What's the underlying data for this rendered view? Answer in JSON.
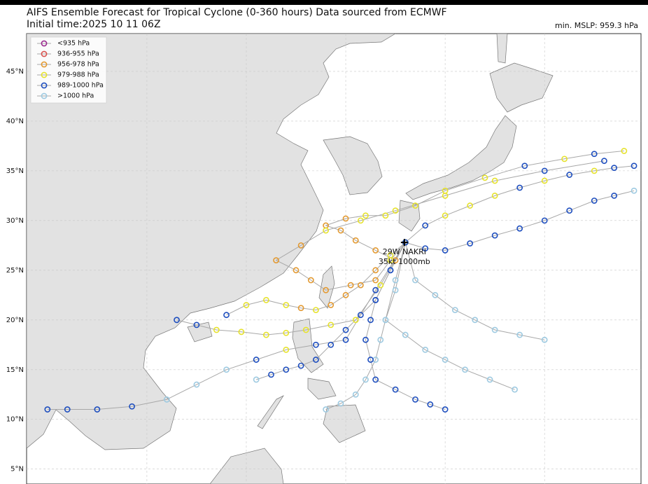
{
  "header": {
    "title": "AIFS Ensemble Forecast for Tropical Cyclone (0-360 hours) Data sourced from ECMWF",
    "subtitle": "Initial time:2025 10 11 06Z",
    "min_mslp": "min. MSLP: 959.3 hPa"
  },
  "map": {
    "xlim": [
      97.9,
      159.7
    ],
    "ylim": [
      3.5,
      48.8
    ],
    "lon_grid": [
      110,
      120,
      130,
      140,
      150
    ],
    "lat_ticks": [
      {
        "value": 45,
        "label": "45°N"
      },
      {
        "value": 40,
        "label": "40°N"
      },
      {
        "value": 35,
        "label": "35°N"
      },
      {
        "value": 30,
        "label": "30°N"
      },
      {
        "value": 25,
        "label": "25°N"
      },
      {
        "value": 20,
        "label": "20°N"
      },
      {
        "value": 15,
        "label": "15°N"
      },
      {
        "value": 10,
        "label": "10°N"
      },
      {
        "value": 5,
        "label": "5°N"
      }
    ]
  },
  "legend": [
    {
      "label": "<935 hPa",
      "color": "#9b2a8f"
    },
    {
      "label": "936-955 hPa",
      "color": "#d9534f"
    },
    {
      "label": "956-978 hPa",
      "color": "#e39a32"
    },
    {
      "label": "979-988 hPa",
      "color": "#e6e22e"
    },
    {
      "label": "989-1000 hPa",
      "color": "#1f4fbf"
    },
    {
      "label": ">1000 hPa",
      "color": "#9ecae1"
    }
  ],
  "storm": {
    "name": "29W NAKRI",
    "info": "35kt 1000mb",
    "lon": 135.9,
    "lat": 27.8
  },
  "tracks": [
    {
      "points": [
        [
          136,
          27.8,
          4
        ],
        [
          138,
          29.5,
          4
        ],
        [
          140,
          30.5,
          3
        ],
        [
          142.5,
          31.5,
          3
        ],
        [
          145,
          32.5,
          3
        ],
        [
          147.5,
          33.3,
          4
        ],
        [
          150,
          34,
          3
        ],
        [
          152.5,
          34.6,
          4
        ],
        [
          155,
          35,
          3
        ],
        [
          157,
          35.3,
          4
        ],
        [
          159,
          35.5,
          4
        ]
      ]
    },
    {
      "points": [
        [
          136,
          27.8,
          4
        ],
        [
          134.5,
          26.5,
          3
        ],
        [
          133,
          25,
          2
        ],
        [
          131.5,
          23.5,
          2
        ],
        [
          130,
          22.5,
          2
        ],
        [
          128.5,
          21.5,
          2
        ],
        [
          127,
          21,
          3
        ],
        [
          125.5,
          21.2,
          2
        ],
        [
          124,
          21.5,
          3
        ],
        [
          122,
          22,
          3
        ],
        [
          120,
          21.5,
          3
        ],
        [
          118,
          20.5,
          4
        ]
      ]
    },
    {
      "points": [
        [
          136,
          27.8,
          4
        ],
        [
          134.5,
          25,
          4
        ],
        [
          133,
          22,
          4
        ],
        [
          131.5,
          20.5,
          4
        ],
        [
          130,
          19,
          4
        ],
        [
          128.5,
          17.5,
          4
        ],
        [
          127,
          16,
          4
        ],
        [
          125.5,
          15.4,
          4
        ],
        [
          124,
          15,
          4
        ],
        [
          122.5,
          14.5,
          4
        ],
        [
          121,
          14,
          5
        ]
      ]
    },
    {
      "points": [
        [
          136,
          27.8,
          5
        ],
        [
          135,
          24,
          5
        ],
        [
          134,
          20,
          5
        ],
        [
          133.5,
          18,
          5
        ],
        [
          133,
          16,
          5
        ],
        [
          132,
          14,
          5
        ],
        [
          131,
          12.5,
          5
        ],
        [
          129.5,
          11.6,
          5
        ],
        [
          128,
          11,
          5
        ]
      ]
    },
    {
      "points": [
        [
          136,
          27.8,
          4
        ],
        [
          133,
          23,
          4
        ],
        [
          130,
          18,
          4
        ],
        [
          127,
          17.5,
          4
        ],
        [
          124,
          17,
          3
        ],
        [
          121,
          16,
          4
        ],
        [
          118,
          15,
          5
        ],
        [
          115,
          13.5,
          5
        ],
        [
          112,
          12,
          5
        ],
        [
          108.5,
          11.3,
          4
        ],
        [
          105,
          11,
          4
        ],
        [
          102,
          11,
          4
        ],
        [
          100,
          11,
          4
        ]
      ]
    },
    {
      "points": [
        [
          136,
          27.8,
          4
        ],
        [
          138,
          27.2,
          4
        ],
        [
          140,
          27,
          4
        ],
        [
          142.5,
          27.7,
          4
        ],
        [
          145,
          28.5,
          4
        ],
        [
          147.5,
          29.2,
          4
        ],
        [
          150,
          30,
          4
        ],
        [
          152.5,
          31,
          4
        ],
        [
          155,
          32,
          4
        ],
        [
          157,
          32.5,
          4
        ],
        [
          159,
          33,
          5
        ]
      ]
    },
    {
      "points": [
        [
          136,
          27.8,
          5
        ],
        [
          137,
          24,
          5
        ],
        [
          139,
          22.5,
          5
        ],
        [
          141,
          21,
          5
        ],
        [
          143,
          20,
          5
        ],
        [
          145,
          19,
          5
        ],
        [
          147.5,
          18.5,
          5
        ],
        [
          150,
          18,
          5
        ]
      ]
    },
    {
      "points": [
        [
          136,
          27.8,
          4
        ],
        [
          135,
          26,
          2
        ],
        [
          133,
          27,
          2
        ],
        [
          131,
          28,
          2
        ],
        [
          129.5,
          29,
          2
        ],
        [
          128,
          29.5,
          2
        ],
        [
          130,
          30.2,
          2
        ],
        [
          132,
          30.5,
          3
        ],
        [
          134,
          30.5,
          3
        ],
        [
          137,
          31.5,
          3
        ],
        [
          140,
          33,
          3
        ],
        [
          144,
          34.3,
          3
        ],
        [
          148,
          35.5,
          4
        ],
        [
          152,
          36.2,
          3
        ],
        [
          155,
          36.7,
          4
        ],
        [
          158,
          37,
          3
        ]
      ]
    },
    {
      "points": [
        [
          136,
          27.8,
          4
        ],
        [
          134.5,
          26,
          3
        ],
        [
          133,
          24,
          2
        ],
        [
          130.5,
          23.5,
          2
        ],
        [
          128,
          23,
          2
        ],
        [
          126.5,
          24,
          2
        ],
        [
          125,
          25,
          2
        ],
        [
          123,
          26,
          2
        ],
        [
          125.5,
          27.5,
          2
        ],
        [
          128,
          29,
          3
        ],
        [
          131.5,
          30,
          3
        ],
        [
          135,
          31,
          3
        ],
        [
          140,
          32.5,
          3
        ],
        [
          145,
          34,
          3
        ],
        [
          150,
          35,
          4
        ],
        [
          156,
          36,
          4
        ]
      ]
    },
    {
      "points": [
        [
          136,
          27.8,
          5
        ],
        [
          135,
          23,
          5
        ],
        [
          134,
          20,
          5
        ],
        [
          136,
          18.5,
          5
        ],
        [
          138,
          17,
          5
        ],
        [
          140,
          16,
          5
        ],
        [
          142,
          15,
          5
        ],
        [
          144.5,
          14,
          5
        ],
        [
          147,
          13,
          5
        ]
      ]
    },
    {
      "points": [
        [
          136,
          27.8,
          3
        ],
        [
          133.5,
          23.5,
          3
        ],
        [
          131,
          20,
          3
        ],
        [
          128.5,
          19.5,
          3
        ],
        [
          126,
          19,
          3
        ],
        [
          124,
          18.7,
          3
        ],
        [
          122,
          18.5,
          3
        ],
        [
          119.5,
          18.8,
          3
        ],
        [
          117,
          19,
          3
        ],
        [
          115,
          19.5,
          4
        ],
        [
          113,
          20,
          4
        ]
      ]
    },
    {
      "points": [
        [
          136,
          27.8,
          4
        ],
        [
          134.5,
          25,
          4
        ],
        [
          133,
          22,
          4
        ],
        [
          132.5,
          20,
          4
        ],
        [
          132,
          18,
          4
        ],
        [
          132.5,
          16,
          4
        ],
        [
          133,
          14,
          4
        ],
        [
          135,
          13,
          4
        ],
        [
          137,
          12,
          4
        ],
        [
          138.5,
          11.5,
          4
        ],
        [
          140,
          11,
          4
        ]
      ]
    }
  ]
}
